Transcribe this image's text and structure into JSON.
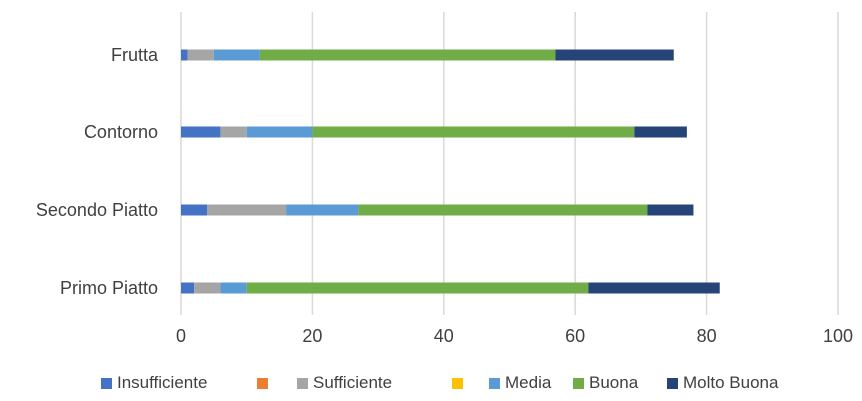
{
  "chart_data": {
    "type": "bar",
    "orientation": "horizontal",
    "stacked": true,
    "categories": [
      "Primo Piatto",
      "Secondo Piatto",
      "Contorno",
      "Frutta"
    ],
    "series": [
      {
        "name": "Insufficiente",
        "color": "#4472C4",
        "values": [
          2,
          4,
          6,
          1
        ]
      },
      {
        "name": "",
        "color": "#ED7D31",
        "values": [
          0,
          0,
          0,
          0
        ]
      },
      {
        "name": "Sufficiente",
        "color": "#A5A5A5",
        "values": [
          4,
          12,
          4,
          4
        ]
      },
      {
        "name": "",
        "color": "#FFC000",
        "values": [
          0,
          0,
          0,
          0
        ]
      },
      {
        "name": "Media",
        "color": "#5B9BD5",
        "values": [
          4,
          11,
          10,
          7
        ]
      },
      {
        "name": "Buona",
        "color": "#70AD47",
        "values": [
          52,
          44,
          49,
          45
        ]
      },
      {
        "name": "Molto Buona",
        "color": "#264478",
        "values": [
          20,
          7,
          8,
          18
        ]
      }
    ],
    "xlim": [
      0,
      100
    ],
    "xticks": [
      "0",
      "20",
      "40",
      "60",
      "80",
      "100"
    ],
    "grid": true,
    "legend_position": "bottom"
  }
}
